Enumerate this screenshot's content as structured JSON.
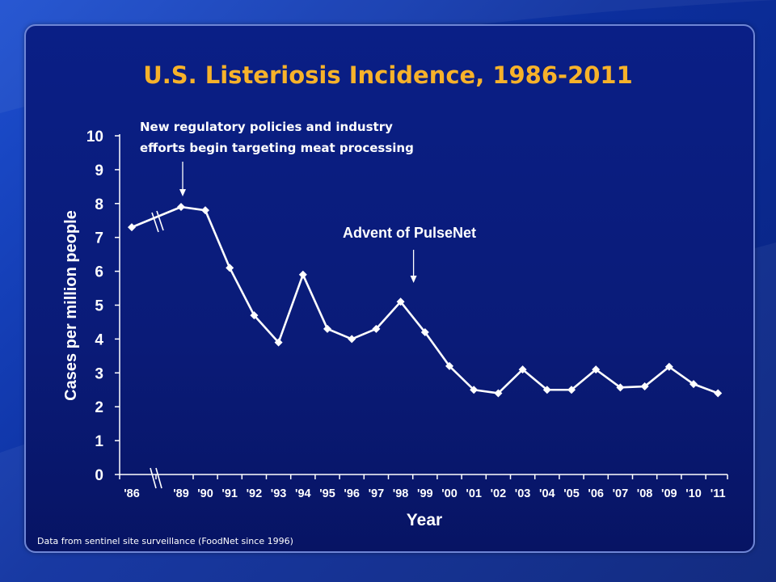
{
  "chart_data": {
    "type": "line",
    "title": "U.S. Listeriosis Incidence, 1986-2011",
    "xlabel": "Year",
    "ylabel": "Cases per million people",
    "ylim": [
      0,
      10
    ],
    "yticks": [
      "0",
      "1",
      "2",
      "3",
      "4",
      "5",
      "6",
      "7",
      "8",
      "9",
      "10"
    ],
    "axis_break": "between '86 and '89",
    "categories": [
      "'86",
      "'89",
      "'90",
      "'91",
      "'92",
      "'93",
      "'94",
      "'95",
      "'96",
      "'97",
      "'98",
      "'99",
      "'00",
      "'01",
      "'02",
      "'03",
      "'04",
      "'05",
      "'06",
      "'07",
      "'08",
      "'09",
      "'10",
      "'11"
    ],
    "series": [
      {
        "values": [
          7.3,
          7.9,
          7.8,
          6.1,
          4.7,
          3.9,
          5.9,
          4.3,
          4.0,
          4.3,
          5.1,
          4.2,
          3.2,
          2.5,
          2.4,
          3.1,
          2.5,
          2.5,
          3.1,
          2.57,
          2.6,
          3.18,
          2.67,
          2.4
        ],
        "color": "#ffffff"
      }
    ],
    "annotations": [
      {
        "id": "policy",
        "lines": [
          "New regulatory policies and industry",
          "efforts begin targeting meat processing"
        ],
        "points_to": "'89"
      },
      {
        "id": "pulsenet",
        "lines": [
          "Advent of PulseNet"
        ],
        "points_to": "'98"
      }
    ],
    "grid": false,
    "legend": "none"
  },
  "footnote": "Data from sentinel site surveillance (FoodNet since 1996)",
  "colors": {
    "title": "#f7b22a",
    "background": "#0a1b78",
    "line": "#ffffff"
  }
}
